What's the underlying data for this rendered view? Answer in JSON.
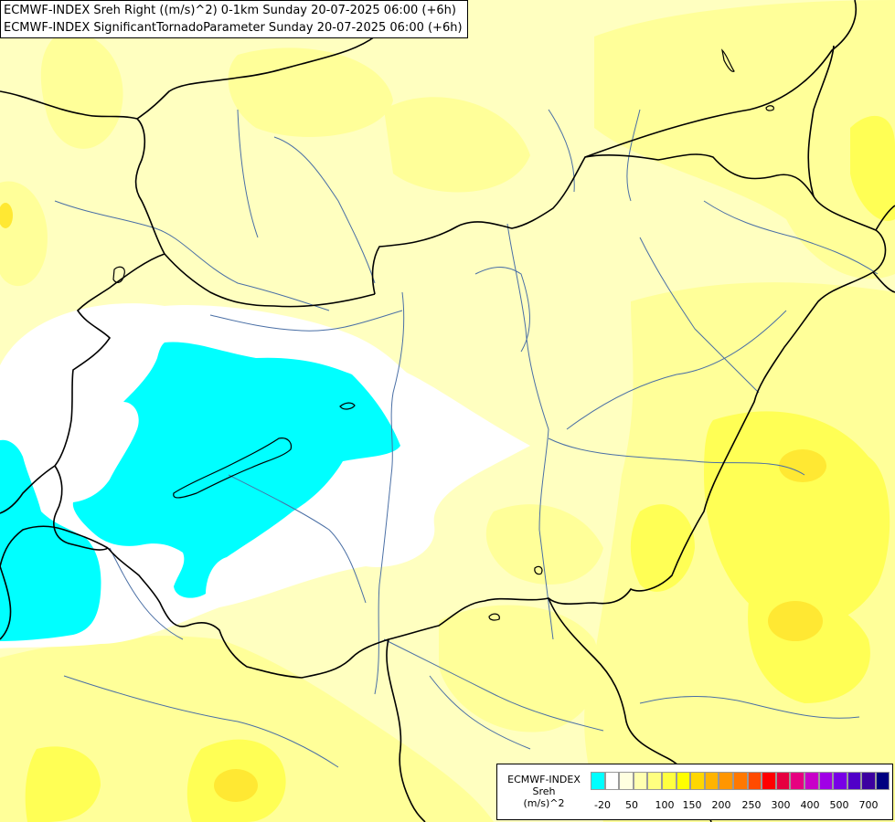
{
  "header": {
    "line1": "ECMWF-INDEX Sreh Right ((m/s)^2) 0-1km Sunday 20-07-2025 06:00 (+6h)",
    "line2": "ECMWF-INDEX SignificantTornadoParameter Sunday 20-07-2025 06:00 (+6h)"
  },
  "legend": {
    "title1": "ECMWF-INDEX",
    "title2": "Sreh",
    "title3": "(m/s)^2",
    "colors": [
      "#00ffff",
      "#ffffff",
      "#ffffe0",
      "#ffffb0",
      "#ffff80",
      "#ffff40",
      "#ffff00",
      "#ffd700",
      "#ffb400",
      "#ff9600",
      "#ff7800",
      "#ff4b00",
      "#ff0000",
      "#e60040",
      "#e60080",
      "#c800c8",
      "#a000e6",
      "#7800e6",
      "#5000c8",
      "#3c00a0",
      "#000080"
    ],
    "ticks": [
      "-20",
      "50",
      "100",
      "150",
      "200",
      "250",
      "300",
      "400",
      "500",
      "700"
    ]
  },
  "colors": {
    "cyan": "#00ffff",
    "white": "#ffffff",
    "pale_yellow": "#ffffc0",
    "light_yellow": "#ffff99",
    "yellow": "#ffff55",
    "deep_yellow": "#ffee33",
    "border": "#000000",
    "river": "#4a6fa5"
  }
}
